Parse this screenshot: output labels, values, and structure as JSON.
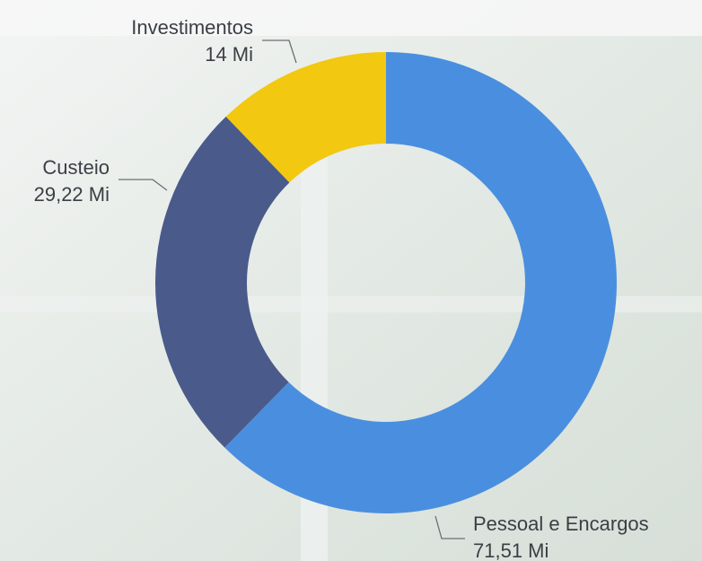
{
  "chart_data": {
    "type": "donut",
    "categories": [
      "Pessoal e Encargos",
      "Custeio",
      "Investimentos"
    ],
    "values": [
      71.51,
      29.22,
      14
    ],
    "value_labels": [
      "71,51 Mi",
      "29,22 Mi",
      "14 Mi"
    ],
    "colors": [
      "#4a8fdf",
      "#4a5a8a",
      "#f2c811"
    ]
  }
}
